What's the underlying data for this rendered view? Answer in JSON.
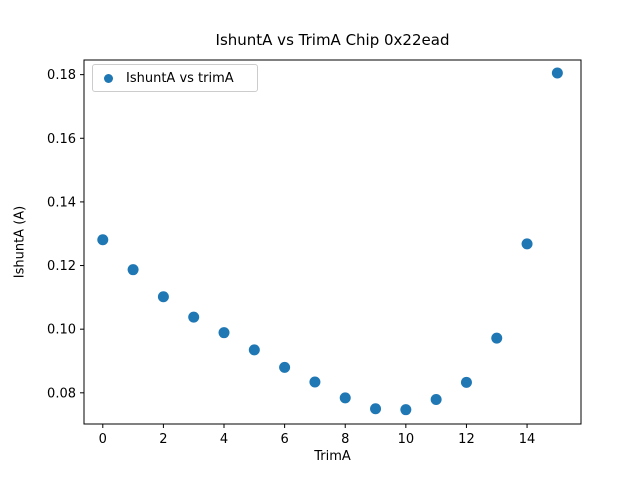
{
  "figure": {
    "title": "IshuntA vs TrimA Chip 0x22ead",
    "background": "#ffffff"
  },
  "labels": {
    "xlabel": "TrimA",
    "ylabel": "IshuntA (A)",
    "legend_entry": "IshuntA vs trimA"
  },
  "colors": {
    "marker": "#1f77b4",
    "spine": "#000000",
    "text": "#000000",
    "legend_border": "#cccccc"
  },
  "chart_data": {
    "type": "scatter",
    "title": "IshuntA vs TrimA Chip 0x22ead",
    "xlabel": "TrimA",
    "ylabel": "IshuntA (A)",
    "legend": {
      "entries": [
        "IshuntA vs trimA"
      ],
      "position": "upper left"
    },
    "grid": false,
    "xlim": [
      -0.62,
      15.78
    ],
    "ylim": [
      0.0702,
      0.1846
    ],
    "xticks": {
      "values": [
        0,
        2,
        4,
        6,
        8,
        10,
        12,
        14
      ],
      "labels": [
        "0",
        "2",
        "4",
        "6",
        "8",
        "10",
        "12",
        "14"
      ]
    },
    "yticks": {
      "values": [
        0.08,
        0.1,
        0.12,
        0.14,
        0.16,
        0.18
      ],
      "labels": [
        "0.08",
        "0.10",
        "0.12",
        "0.14",
        "0.16",
        "0.18"
      ]
    },
    "series": [
      {
        "name": "IshuntA vs trimA",
        "color": "#1f77b4",
        "marker_diameter_px": 11,
        "x": [
          0,
          1,
          2,
          3,
          4,
          5,
          6,
          7,
          8,
          9,
          10,
          11,
          12,
          13,
          14,
          15
        ],
        "y": [
          0.1281,
          0.1187,
          0.1102,
          0.1038,
          0.0989,
          0.0935,
          0.088,
          0.0834,
          0.0784,
          0.075,
          0.0747,
          0.0779,
          0.0833,
          0.0972,
          0.1268,
          0.1805
        ]
      }
    ]
  }
}
